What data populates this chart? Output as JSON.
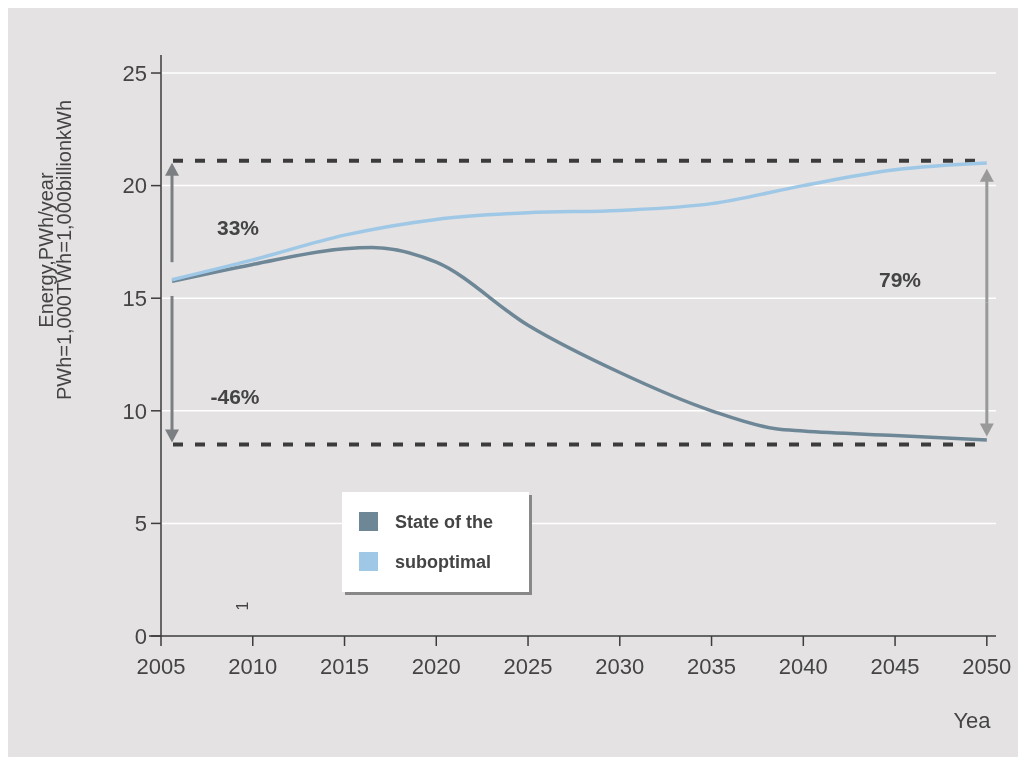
{
  "chart_data": {
    "type": "line",
    "xlabel": "Yea",
    "ylabel": "Energy,PWh/year\nPWh=1,000TWh=1,000billionkWh",
    "xlim": [
      2005,
      2050.5
    ],
    "ylim": [
      0,
      25.8
    ],
    "xticks": [
      2005,
      2010,
      2015,
      2020,
      2025,
      2030,
      2035,
      2040,
      2045,
      2050
    ],
    "yticks": [
      0,
      5,
      10,
      15,
      20,
      25
    ],
    "grid": "y",
    "legend": "bottom left",
    "line_style": "solid",
    "series": [
      {
        "name": "State of the",
        "color": "#6e8797",
        "x": [
          2005.6,
          2010,
          2015,
          2016.5,
          2020,
          2025,
          2030,
          2035,
          2038.5,
          2040,
          2045,
          2050
        ],
        "values": [
          15.75,
          16.5,
          17.2,
          17.25,
          16.6,
          13.8,
          11.7,
          10.0,
          9.2,
          9.1,
          8.9,
          8.7
        ]
      },
      {
        "name": "suboptimal",
        "color": "#9fc8e6",
        "x": [
          2005.6,
          2010,
          2015,
          2020,
          2025,
          2030,
          2035,
          2040,
          2045,
          2050
        ],
        "values": [
          15.82,
          16.7,
          17.8,
          18.5,
          18.8,
          18.9,
          19.2,
          20.0,
          20.7,
          21.0
        ]
      }
    ],
    "ref_lines": [
      {
        "axis": "y",
        "value": 21.1,
        "color": "#3c3c3c",
        "line_style": "dashed"
      },
      {
        "axis": "y",
        "value": 8.5,
        "color": "#3c3c3c",
        "line_style": "dashed"
      }
    ],
    "annotations": [
      "33%",
      "-46%",
      "79%",
      "1"
    ]
  }
}
